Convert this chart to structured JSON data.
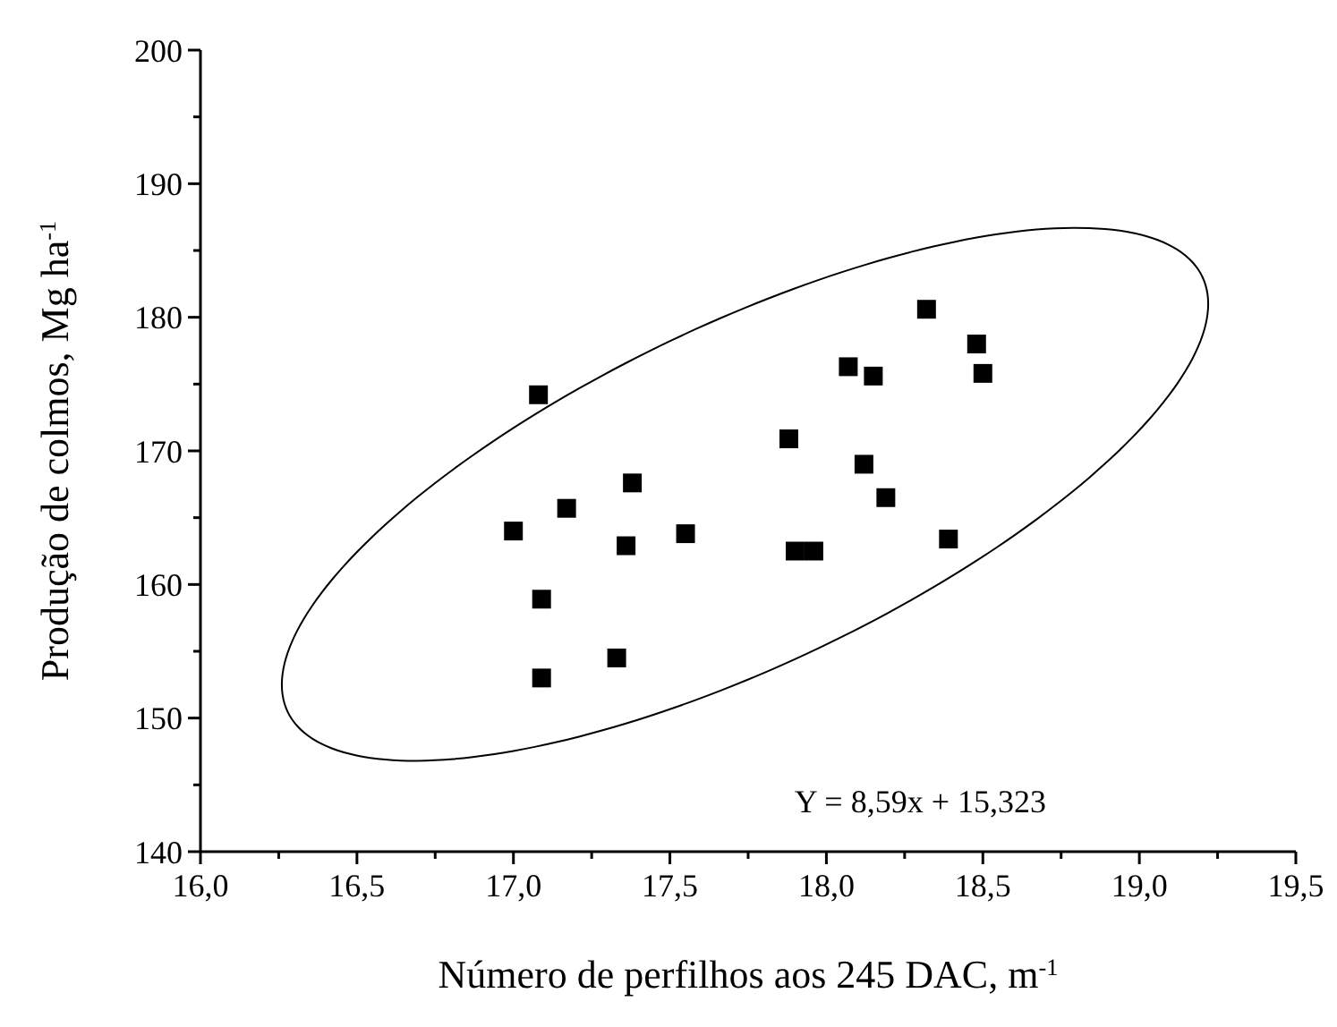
{
  "chart_data": {
    "type": "scatter",
    "xlabel": "Número de perfilhos aos 245 DAC, m$^{-1}$",
    "ylabel": "Produção de colmos, Mg ha$^{-1}$",
    "marker": "square",
    "grid": false,
    "annotations": [
      "Y = 8,59x + 15,323"
    ],
    "xlim": [
      16,
      19.5
    ],
    "ylim": [
      140,
      200
    ],
    "xticks": [
      {
        "value": 16,
        "label": "16,0"
      },
      {
        "value": 16.25,
        "label": null
      },
      {
        "value": 16.5,
        "label": "16,5"
      },
      {
        "value": 16.75,
        "label": null
      },
      {
        "value": 17,
        "label": "17,0"
      },
      {
        "value": 17.25,
        "label": null
      },
      {
        "value": 17.5,
        "label": "17,5"
      },
      {
        "value": 17.75,
        "label": null
      },
      {
        "value": 18,
        "label": "18,0"
      },
      {
        "value": 18.25,
        "label": null
      },
      {
        "value": 18.5,
        "label": "18,5"
      },
      {
        "value": 18.75,
        "label": null
      },
      {
        "value": 19,
        "label": "19,0"
      },
      {
        "value": 19.25,
        "label": null
      },
      {
        "value": 19.5,
        "label": "19,5"
      }
    ],
    "yticks": [
      140,
      {
        "value": 145,
        "label": null
      },
      150,
      {
        "value": 155,
        "label": null
      },
      160,
      {
        "value": 165,
        "label": null
      },
      170,
      {
        "value": 175,
        "label": null
      },
      180,
      {
        "value": 185,
        "label": null
      },
      190,
      {
        "value": 195,
        "label": null
      },
      200
    ],
    "series": [
      {
        "color": "#000000",
        "x": [
          17.08,
          18.07,
          18.15,
          17.88,
          18.12,
          18.19,
          17.38,
          17.17,
          17.0,
          17.36,
          17.55,
          17.9,
          17.96,
          17.09,
          17.33,
          17.09,
          18.32,
          18.48,
          18.5,
          18.39
        ],
        "values": [
          174.2,
          176.3,
          175.6,
          170.9,
          169.0,
          166.5,
          167.6,
          165.7,
          164.0,
          162.9,
          163.8,
          162.5,
          162.5,
          158.9,
          154.5,
          153.0,
          180.6,
          178.0,
          175.8,
          163.4
        ]
      }
    ]
  }
}
